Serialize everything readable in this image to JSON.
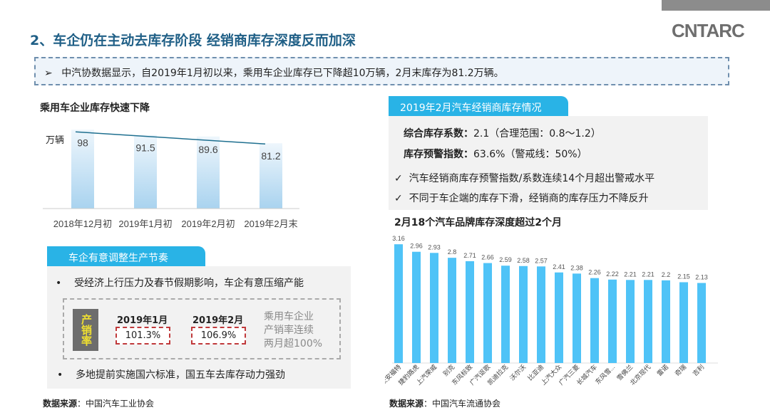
{
  "header": {
    "title": "2、车企仍在主动去库存阶段 经销商库存深度反而加深",
    "logo": "CNTARC"
  },
  "summary": {
    "arrow": "➢",
    "text": "中汽协数据显示，自2019年1月初以来，乘用车企业库存已下降超10万辆，2月末库存为81.2万辆。"
  },
  "left_chart": {
    "title": "乘用车企业库存快速下降",
    "unit": "万辆"
  },
  "production": {
    "tab": "车企有意调整生产节奏",
    "bullet1": "受经济上行压力及春节假期影响，车企有意压缩产能",
    "label": "产销率",
    "m1": "2019年1月",
    "v1": "101.3%",
    "m2": "2019年2月",
    "v2": "106.9%",
    "note": [
      "乘用车企业",
      "产销率连续",
      "两月超100%"
    ],
    "bullet2": "多地提前实施国六标准，国五车去库存动力强劲"
  },
  "source_left": {
    "label": "数据来源",
    "text": "：中国汽车工业协会"
  },
  "dealer": {
    "tab": "2019年2月汽车经销商库存情况",
    "row1_label": "综合库存系数：",
    "row1_value": "2.1（合理范围：0.8～1.2）",
    "row2_label": "库存预警指数：",
    "row2_value": "63.6%（警戒线：50%）",
    "check1": "汽车经销商库存预警指数/系数连续14个月超出警戒水平",
    "check2": "不同于车企端的库存下滑，经销商的库存压力不降反升"
  },
  "right_chart": {
    "title": "2月18个汽车品牌库存深度超过2个月"
  },
  "source_right": {
    "label": "数据来源",
    "text": "：中国汽车流通协会"
  },
  "colors": {
    "title": "#1f5f86",
    "tab": "#29b3e6",
    "bar": "#4fc3f7",
    "accent_red": "#c0393b"
  },
  "chart_data": [
    {
      "type": "bar",
      "title": "乘用车企业库存快速下降",
      "ylabel": "万辆",
      "categories": [
        "2018年12月初",
        "2019年1月初",
        "2019年2月初",
        "2019年2月末"
      ],
      "values": [
        98,
        91.5,
        89.6,
        81.2
      ],
      "trendline": true
    },
    {
      "type": "bar",
      "title": "2月18个汽车品牌库存深度超过2个月",
      "categories": [
        "长安福特",
        "捷豹路虎",
        "上汽荣威",
        "别克",
        "东风标致",
        "广汽讴歌",
        "凯迪拉克",
        "沃尔沃",
        "比亚迪",
        "上汽大众",
        "广汽三菱",
        "长城汽车",
        "东风雪...",
        "雪佛兰",
        "北京现代",
        "雷诺",
        "奇瑞",
        "吉利"
      ],
      "values": [
        3.16,
        2.96,
        2.93,
        2.8,
        2.71,
        2.66,
        2.59,
        2.58,
        2.57,
        2.41,
        2.38,
        2.26,
        2.22,
        2.21,
        2.21,
        2.2,
        2.15,
        2.13
      ]
    }
  ]
}
